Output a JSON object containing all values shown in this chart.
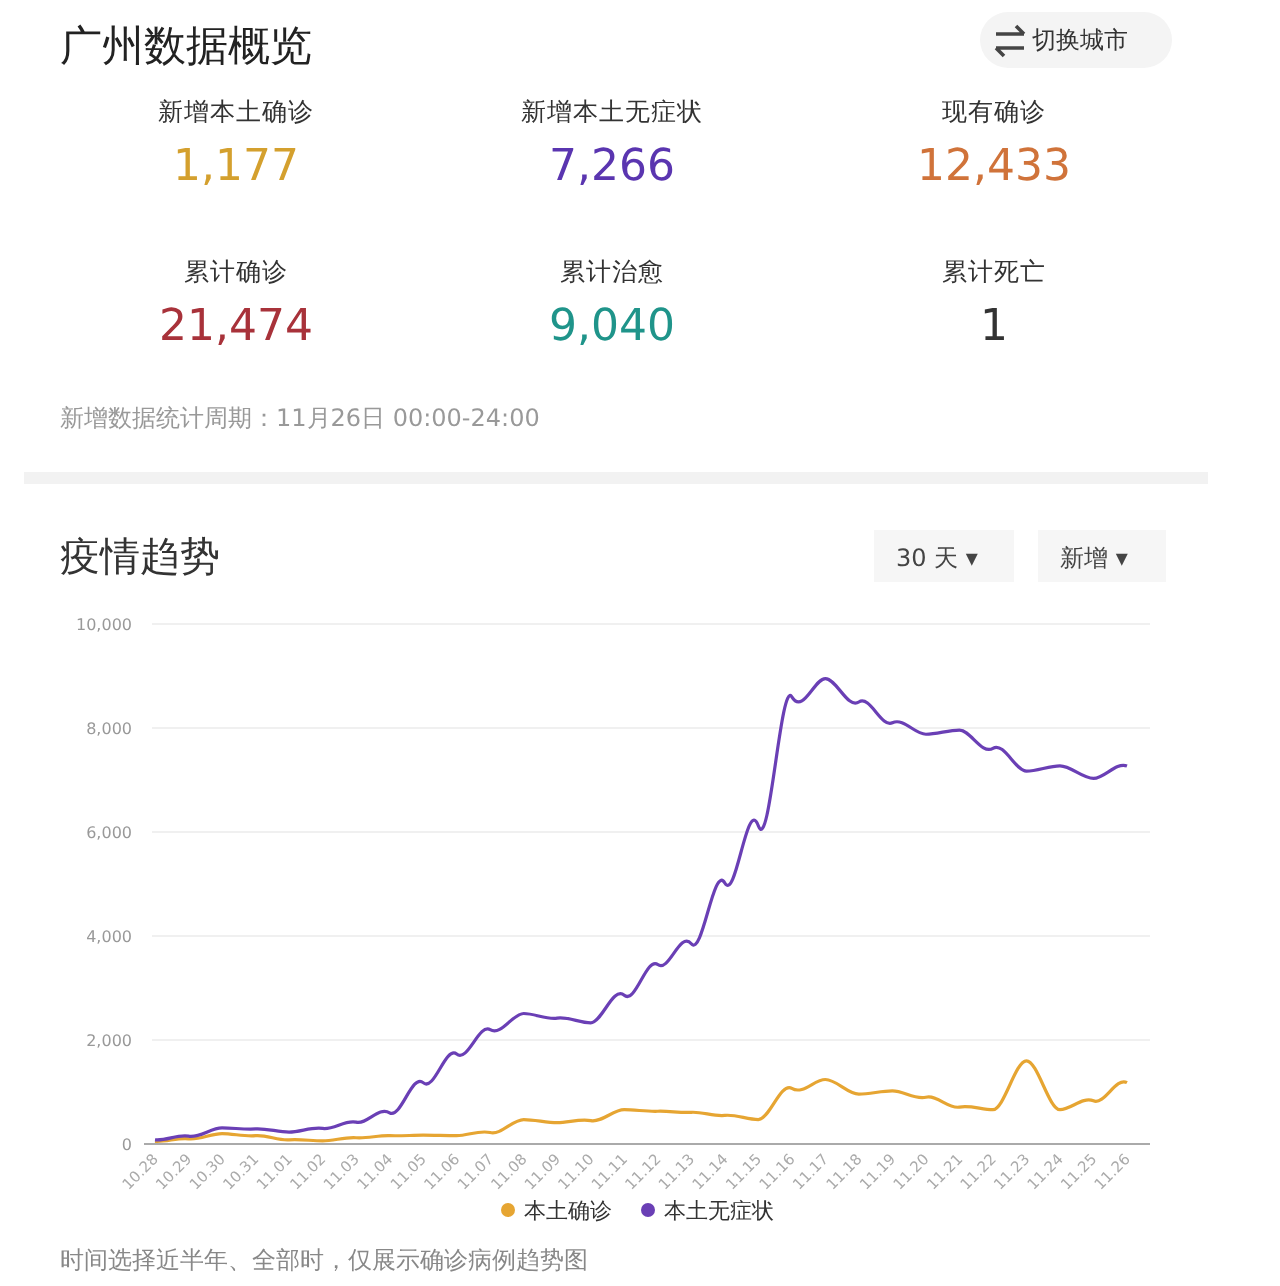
{
  "chart_data": [
    {
      "type": "other",
      "title": "广州数据概览",
      "annotations": [
        "切换城市",
        "1,177",
        "7,266",
        "12,433",
        "21,474",
        "9,040",
        "1",
        "新增数据统计周期：11月26日 00:00-24:00"
      ],
      "categories": [
        "新增本土确诊",
        "新增本土无症状",
        "现有确诊",
        "累计确诊",
        "累计治愈",
        "累计死亡"
      ],
      "colors": [
        "#d4a02e",
        "#5a35b0",
        "#d0733a",
        "#a8323a",
        "#1f948a",
        "#333333"
      ]
    },
    {
      "type": "line",
      "title": "疫情趋势",
      "annotations": [
        "30 天 ▾",
        "新增 ▾",
        "时间选择近半年、全部时，仅展示确诊病例趋势图"
      ],
      "categories": [
        "10.28",
        "10.29",
        "10.30",
        "10.31",
        "11.01",
        "11.02",
        "11.03",
        "11.04",
        "11.05",
        "11.06",
        "11.07",
        "11.08",
        "11.09",
        "11.10",
        "11.11",
        "11.12",
        "11.13",
        "11.14",
        "11.15",
        "11.16",
        "11.17",
        "11.18",
        "11.19",
        "11.20",
        "11.21",
        "11.22",
        "11.23",
        "11.24",
        "11.25",
        "11.26"
      ],
      "series": [
        {
          "name": "本土确诊",
          "color": "#e6a532",
          "values": [
            50,
            100,
            200,
            160,
            80,
            60,
            120,
            160,
            170,
            160,
            220,
            470,
            410,
            450,
            660,
            630,
            610,
            550,
            470,
            1070,
            1240,
            960,
            1020,
            900,
            710,
            660,
            1600,
            660,
            830,
            1180
          ]
        },
        {
          "name": "本土无症状",
          "color": "#6a3fb5",
          "values": [
            80,
            150,
            310,
            290,
            230,
            300,
            420,
            600,
            1180,
            1730,
            2200,
            2510,
            2420,
            2330,
            2860,
            3450,
            3850,
            5020,
            6120,
            8600,
            8950,
            8500,
            8100,
            7880,
            7960,
            7610,
            7170,
            7270,
            7030,
            7270
          ]
        }
      ],
      "ylim": [
        0,
        10000
      ],
      "yticks": [
        0,
        {
          "value": 2000,
          "label": "2,000"
        },
        {
          "value": 4000,
          "label": "4,000"
        },
        {
          "value": 6000,
          "label": "6,000"
        },
        {
          "value": 8000,
          "label": "8,000"
        },
        {
          "value": 10000,
          "label": "10,000"
        }
      ],
      "grid": "y",
      "legend": "bottom",
      "marker": "none",
      "line_style": "solid"
    }
  ]
}
